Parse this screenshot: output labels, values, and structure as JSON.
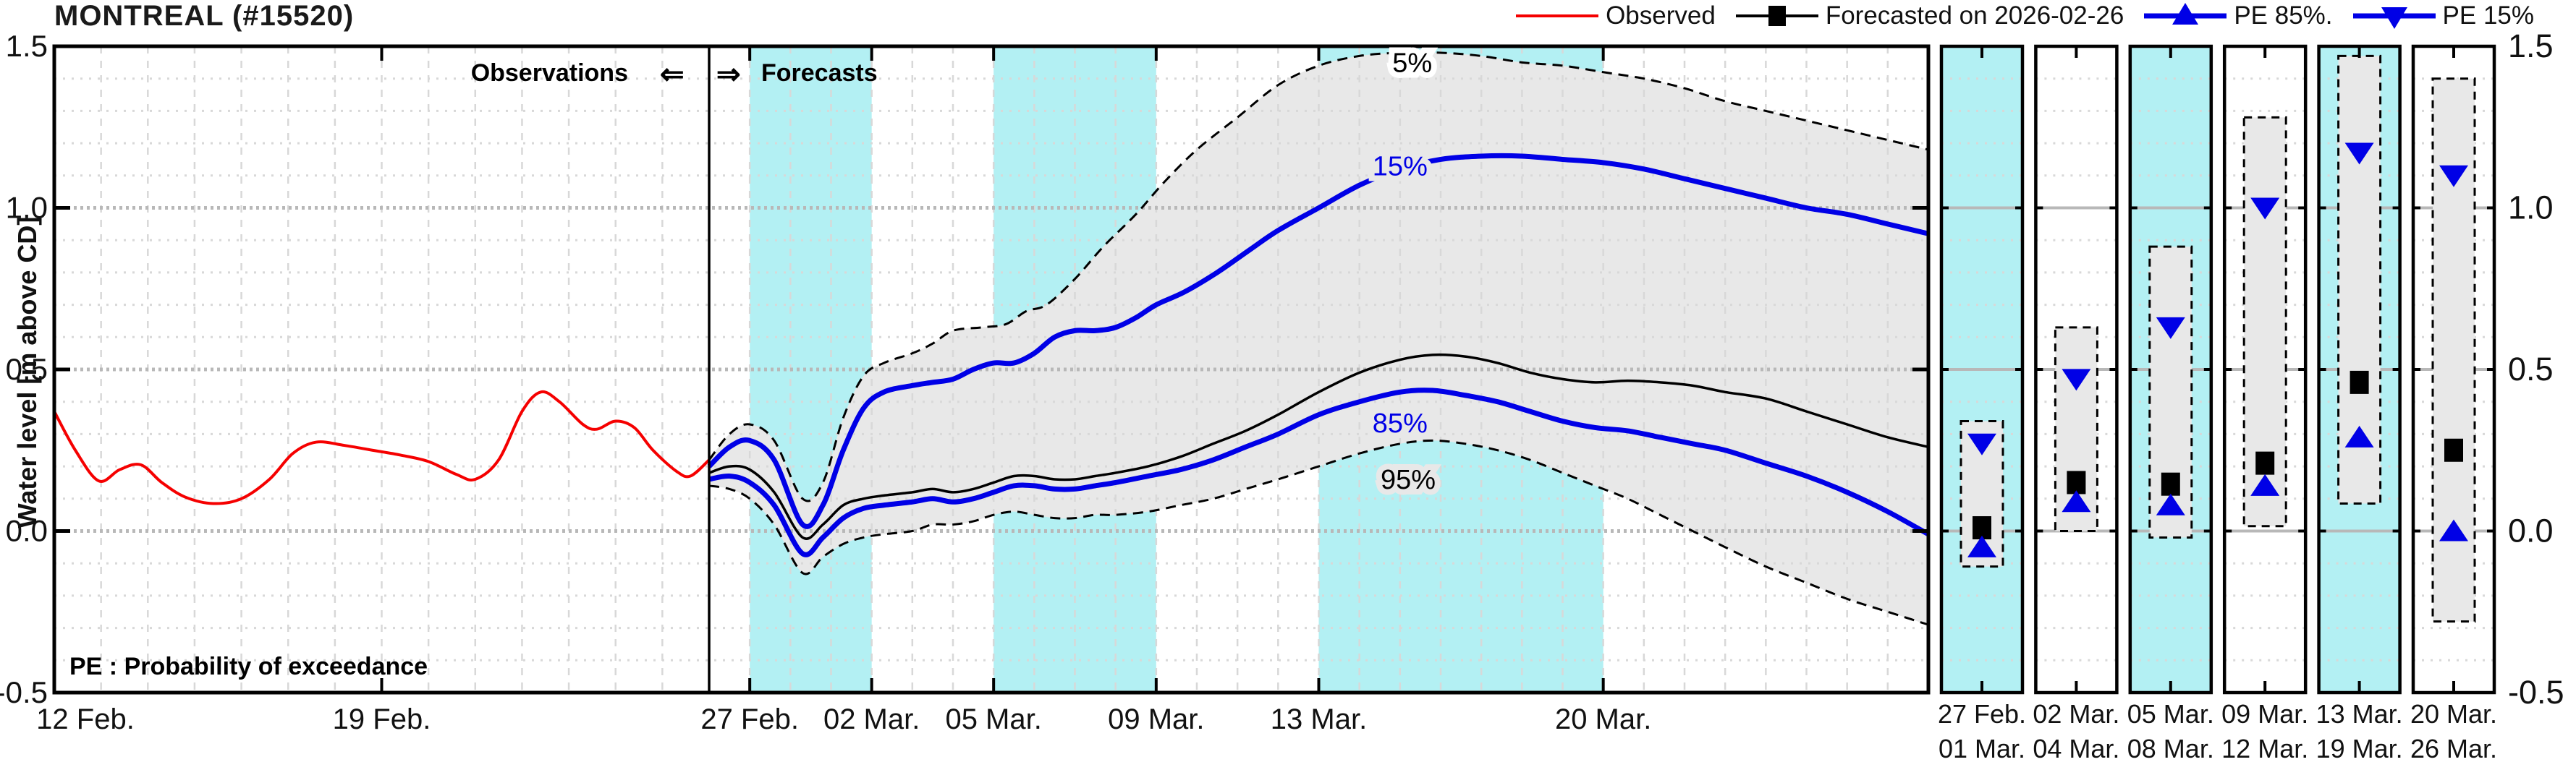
{
  "header": {
    "title": "MONTREAL (#15520)"
  },
  "legend": {
    "items": [
      {
        "label": "Observed",
        "type": "line",
        "color": "#f50000"
      },
      {
        "label": "Forecasted on 2026-02-26",
        "type": "line-square",
        "color": "#000000"
      },
      {
        "label": "PE 85%.",
        "type": "line-triangle-up",
        "color": "#0000e6"
      },
      {
        "label": "PE 15%",
        "type": "line-triangle-down",
        "color": "#0000e6"
      }
    ]
  },
  "chart_data": {
    "type": "line",
    "title": "MONTREAL (#15520)",
    "ylabel": "Water level [m above CD]",
    "ylim": [
      -0.5,
      1.5
    ],
    "grid": true,
    "y_ticks": [
      {
        "v": 1.5,
        "label": "1.5"
      },
      {
        "v": 1.0,
        "label": "1.0"
      },
      {
        "v": 0.5,
        "label": "0.5"
      },
      {
        "v": 0.0,
        "label": "0.0"
      },
      {
        "v": -0.5,
        "label": "-0.5"
      }
    ],
    "minor_step": 0.1,
    "annotations": {
      "observations": "Observations",
      "left_arrow": "⇐",
      "right_arrow": "⇒",
      "forecasts": "Forecasts",
      "pe_note": "PE : Probability of exceedance"
    },
    "curve_labels": [
      {
        "text": "5%",
        "day": 17.3,
        "value": 1.45,
        "color": "#000000",
        "halo": "#ffffff"
      },
      {
        "text": "15%",
        "day": 17.0,
        "value": 1.13,
        "color": "#0000e6",
        "halo": "#e8e8e8"
      },
      {
        "text": "85%",
        "day": 17.0,
        "value": 0.335,
        "color": "#0000e6",
        "halo": "#e8e8e8"
      },
      {
        "text": "95%",
        "day": 17.2,
        "value": 0.16,
        "color": "#000000",
        "halo": "#e8e8e8"
      }
    ],
    "obs_axis": {
      "days": 14,
      "ticks": [
        {
          "label": "12 Feb.",
          "day": 0
        },
        {
          "label": "19 Feb.",
          "day": 7
        }
      ]
    },
    "fc_axis": {
      "days": 30,
      "ticks": [
        {
          "label": "27 Feb.",
          "day": 1
        },
        {
          "label": "02 Mar.",
          "day": 4
        },
        {
          "label": "05 Mar.",
          "day": 7
        },
        {
          "label": "09 Mar.",
          "day": 11
        },
        {
          "label": "13 Mar.",
          "day": 15
        },
        {
          "label": "20 Mar.",
          "day": 22
        }
      ]
    },
    "shaded_day_bands": [
      [
        1,
        4
      ],
      [
        7,
        11
      ],
      [
        15,
        22
      ]
    ],
    "series": {
      "observed": {
        "name": "Observed",
        "color": "#f50000",
        "width": 4,
        "points": [
          [
            0,
            0.37
          ],
          [
            0.45,
            0.25
          ],
          [
            0.95,
            0.155
          ],
          [
            1.4,
            0.19
          ],
          [
            1.85,
            0.205
          ],
          [
            2.3,
            0.15
          ],
          [
            2.8,
            0.105
          ],
          [
            3.4,
            0.085
          ],
          [
            4.0,
            0.1
          ],
          [
            4.6,
            0.16
          ],
          [
            5.1,
            0.24
          ],
          [
            5.6,
            0.275
          ],
          [
            6.2,
            0.265
          ],
          [
            6.8,
            0.25
          ],
          [
            7.4,
            0.235
          ],
          [
            8.0,
            0.215
          ],
          [
            8.6,
            0.175
          ],
          [
            9.0,
            0.16
          ],
          [
            9.5,
            0.22
          ],
          [
            10.0,
            0.37
          ],
          [
            10.4,
            0.43
          ],
          [
            10.8,
            0.4
          ],
          [
            11.3,
            0.33
          ],
          [
            11.6,
            0.315
          ],
          [
            12.0,
            0.34
          ],
          [
            12.4,
            0.32
          ],
          [
            12.8,
            0.25
          ],
          [
            13.3,
            0.185
          ],
          [
            13.6,
            0.17
          ],
          [
            14,
            0.22
          ]
        ]
      },
      "pe5": {
        "name": "PE 5%",
        "color": "#000000",
        "width": 3,
        "dash": "14 9",
        "points": [
          [
            0,
            0.22
          ],
          [
            0.5,
            0.3
          ],
          [
            1,
            0.33
          ],
          [
            1.6,
            0.28
          ],
          [
            2.3,
            0.1
          ],
          [
            2.8,
            0.15
          ],
          [
            3.3,
            0.35
          ],
          [
            3.8,
            0.48
          ],
          [
            4.3,
            0.52
          ],
          [
            5,
            0.55
          ],
          [
            5.5,
            0.58
          ],
          [
            6,
            0.62
          ],
          [
            6.7,
            0.63
          ],
          [
            7.3,
            0.64
          ],
          [
            7.8,
            0.68
          ],
          [
            8.3,
            0.7
          ],
          [
            9,
            0.78
          ],
          [
            9.7,
            0.88
          ],
          [
            10.5,
            0.98
          ],
          [
            11.2,
            1.08
          ],
          [
            12,
            1.18
          ],
          [
            13,
            1.28
          ],
          [
            14,
            1.38
          ],
          [
            15,
            1.44
          ],
          [
            16,
            1.47
          ],
          [
            17,
            1.48
          ],
          [
            18,
            1.48
          ],
          [
            19,
            1.47
          ],
          [
            20,
            1.45
          ],
          [
            21,
            1.44
          ],
          [
            22,
            1.42
          ],
          [
            23,
            1.4
          ],
          [
            24,
            1.37
          ],
          [
            25,
            1.33
          ],
          [
            26,
            1.3
          ],
          [
            27,
            1.27
          ],
          [
            28,
            1.24
          ],
          [
            29,
            1.21
          ],
          [
            30,
            1.18
          ]
        ]
      },
      "pe15": {
        "name": "PE 15%",
        "color": "#0000e6",
        "width": 7,
        "points": [
          [
            0,
            0.2
          ],
          [
            0.5,
            0.26
          ],
          [
            1,
            0.28
          ],
          [
            1.6,
            0.22
          ],
          [
            2.3,
            0.02
          ],
          [
            2.8,
            0.08
          ],
          [
            3.3,
            0.25
          ],
          [
            3.8,
            0.38
          ],
          [
            4.3,
            0.43
          ],
          [
            5,
            0.45
          ],
          [
            5.5,
            0.46
          ],
          [
            6,
            0.47
          ],
          [
            6.5,
            0.5
          ],
          [
            7,
            0.52
          ],
          [
            7.5,
            0.52
          ],
          [
            8,
            0.55
          ],
          [
            8.5,
            0.6
          ],
          [
            9,
            0.62
          ],
          [
            9.5,
            0.62
          ],
          [
            10,
            0.63
          ],
          [
            10.5,
            0.66
          ],
          [
            11,
            0.7
          ],
          [
            11.7,
            0.74
          ],
          [
            12.5,
            0.8
          ],
          [
            13.3,
            0.87
          ],
          [
            14,
            0.93
          ],
          [
            15,
            1.0
          ],
          [
            16,
            1.07
          ],
          [
            17,
            1.12
          ],
          [
            18,
            1.15
          ],
          [
            19,
            1.16
          ],
          [
            20,
            1.16
          ],
          [
            21,
            1.15
          ],
          [
            22,
            1.14
          ],
          [
            23,
            1.12
          ],
          [
            24,
            1.09
          ],
          [
            25,
            1.06
          ],
          [
            26,
            1.03
          ],
          [
            27,
            1.0
          ],
          [
            28,
            0.98
          ],
          [
            29,
            0.95
          ],
          [
            30,
            0.92
          ]
        ]
      },
      "median": {
        "name": "Forecasted on 2026-02-26",
        "color": "#000000",
        "width": 3.5,
        "points": [
          [
            0,
            0.18
          ],
          [
            0.5,
            0.2
          ],
          [
            1,
            0.19
          ],
          [
            1.6,
            0.12
          ],
          [
            2.3,
            -0.02
          ],
          [
            2.8,
            0.02
          ],
          [
            3.3,
            0.08
          ],
          [
            3.8,
            0.1
          ],
          [
            4.3,
            0.11
          ],
          [
            5,
            0.12
          ],
          [
            5.5,
            0.13
          ],
          [
            6,
            0.12
          ],
          [
            6.5,
            0.13
          ],
          [
            7,
            0.15
          ],
          [
            7.5,
            0.17
          ],
          [
            8,
            0.17
          ],
          [
            8.5,
            0.16
          ],
          [
            9,
            0.16
          ],
          [
            9.5,
            0.17
          ],
          [
            10,
            0.18
          ],
          [
            10.8,
            0.2
          ],
          [
            11.6,
            0.23
          ],
          [
            12.4,
            0.27
          ],
          [
            13.2,
            0.31
          ],
          [
            14,
            0.36
          ],
          [
            15,
            0.43
          ],
          [
            16,
            0.49
          ],
          [
            17,
            0.53
          ],
          [
            17.8,
            0.545
          ],
          [
            18.6,
            0.54
          ],
          [
            19.4,
            0.52
          ],
          [
            20.2,
            0.49
          ],
          [
            21,
            0.47
          ],
          [
            21.8,
            0.46
          ],
          [
            22.6,
            0.465
          ],
          [
            23.4,
            0.46
          ],
          [
            24.2,
            0.45
          ],
          [
            25,
            0.43
          ],
          [
            26,
            0.41
          ],
          [
            27,
            0.37
          ],
          [
            28,
            0.33
          ],
          [
            29,
            0.29
          ],
          [
            30,
            0.26
          ]
        ]
      },
      "pe85": {
        "name": "PE 85%",
        "color": "#0000e6",
        "width": 7,
        "points": [
          [
            0,
            0.16
          ],
          [
            0.5,
            0.17
          ],
          [
            1,
            0.15
          ],
          [
            1.6,
            0.08
          ],
          [
            2.3,
            -0.07
          ],
          [
            2.8,
            -0.02
          ],
          [
            3.3,
            0.04
          ],
          [
            3.8,
            0.07
          ],
          [
            4.3,
            0.08
          ],
          [
            5,
            0.09
          ],
          [
            5.5,
            0.1
          ],
          [
            6,
            0.09
          ],
          [
            6.5,
            0.1
          ],
          [
            7,
            0.12
          ],
          [
            7.5,
            0.14
          ],
          [
            8,
            0.14
          ],
          [
            8.5,
            0.13
          ],
          [
            9,
            0.13
          ],
          [
            9.5,
            0.14
          ],
          [
            10,
            0.15
          ],
          [
            10.8,
            0.17
          ],
          [
            11.6,
            0.19
          ],
          [
            12.4,
            0.22
          ],
          [
            13.2,
            0.26
          ],
          [
            14,
            0.3
          ],
          [
            15,
            0.36
          ],
          [
            16,
            0.4
          ],
          [
            17,
            0.43
          ],
          [
            17.8,
            0.435
          ],
          [
            18.6,
            0.42
          ],
          [
            19.4,
            0.4
          ],
          [
            20.2,
            0.37
          ],
          [
            21,
            0.34
          ],
          [
            21.8,
            0.32
          ],
          [
            22.6,
            0.31
          ],
          [
            23.4,
            0.29
          ],
          [
            24.2,
            0.27
          ],
          [
            25,
            0.25
          ],
          [
            26,
            0.21
          ],
          [
            27,
            0.17
          ],
          [
            28,
            0.12
          ],
          [
            29,
            0.06
          ],
          [
            30,
            -0.01
          ]
        ]
      },
      "pe95": {
        "name": "PE 95%",
        "color": "#000000",
        "width": 3,
        "dash": "14 9",
        "points": [
          [
            0,
            0.14
          ],
          [
            0.5,
            0.13
          ],
          [
            1,
            0.1
          ],
          [
            1.6,
            0.02
          ],
          [
            2.3,
            -0.13
          ],
          [
            2.8,
            -0.08
          ],
          [
            3.3,
            -0.04
          ],
          [
            3.8,
            -0.02
          ],
          [
            4.3,
            -0.01
          ],
          [
            5,
            0.0
          ],
          [
            5.5,
            0.02
          ],
          [
            6,
            0.02
          ],
          [
            6.5,
            0.03
          ],
          [
            7,
            0.05
          ],
          [
            7.5,
            0.06
          ],
          [
            8,
            0.05
          ],
          [
            8.5,
            0.04
          ],
          [
            9,
            0.04
          ],
          [
            9.5,
            0.05
          ],
          [
            10,
            0.05
          ],
          [
            10.8,
            0.06
          ],
          [
            11.6,
            0.08
          ],
          [
            12.4,
            0.1
          ],
          [
            13.2,
            0.13
          ],
          [
            14,
            0.16
          ],
          [
            15,
            0.2
          ],
          [
            16,
            0.24
          ],
          [
            17,
            0.27
          ],
          [
            17.8,
            0.28
          ],
          [
            18.6,
            0.27
          ],
          [
            19.4,
            0.25
          ],
          [
            20.2,
            0.22
          ],
          [
            21,
            0.18
          ],
          [
            21.8,
            0.14
          ],
          [
            22.6,
            0.1
          ],
          [
            23.4,
            0.05
          ],
          [
            24.2,
            0.0
          ],
          [
            25,
            -0.05
          ],
          [
            26,
            -0.11
          ],
          [
            27,
            -0.16
          ],
          [
            28,
            -0.21
          ],
          [
            29,
            -0.25
          ],
          [
            30,
            -0.29
          ]
        ]
      },
      "envelope": {
        "upper": "pe5",
        "lower": "pe95",
        "fill": "#e8e8e8"
      }
    },
    "panels": {
      "right_axis_labels": [
        "1.5",
        "1.0",
        "0.5",
        "0.0",
        "-0.5"
      ],
      "items": [
        {
          "start": "27 Feb.",
          "end": "01 Mar.",
          "shaded": true,
          "range": [
            -0.11,
            0.34
          ],
          "pe15": 0.27,
          "median": 0.01,
          "pe85": -0.05
        },
        {
          "start": "02 Mar.",
          "end": "04 Mar.",
          "shaded": false,
          "range": [
            0.0,
            0.63
          ],
          "pe15": 0.47,
          "median": 0.15,
          "pe85": 0.09
        },
        {
          "start": "05 Mar.",
          "end": "08 Mar.",
          "shaded": true,
          "range": [
            -0.02,
            0.88
          ],
          "pe15": 0.63,
          "median": 0.145,
          "pe85": 0.08
        },
        {
          "start": "09 Mar.",
          "end": "12 Mar.",
          "shaded": false,
          "range": [
            0.015,
            1.28
          ],
          "pe15": 1.0,
          "median": 0.21,
          "pe85": 0.14
        },
        {
          "start": "13 Mar.",
          "end": "19 Mar.",
          "shaded": true,
          "range": [
            0.085,
            1.47
          ],
          "pe15": 1.17,
          "median": 0.46,
          "pe85": 0.29
        },
        {
          "start": "20 Mar.",
          "end": "26 Mar.",
          "shaded": false,
          "range": [
            -0.28,
            1.4
          ],
          "pe15": 1.1,
          "median": 0.25,
          "pe85": 0.0
        }
      ]
    },
    "colors": {
      "band": "#b3f0f3",
      "envelope": "#e8e8e8",
      "grid_major": "#b8b8b8",
      "grid_minor": "#d8d8d8",
      "pe_blue": "#0000e6",
      "observed_red": "#f50000",
      "black": "#000000"
    }
  }
}
